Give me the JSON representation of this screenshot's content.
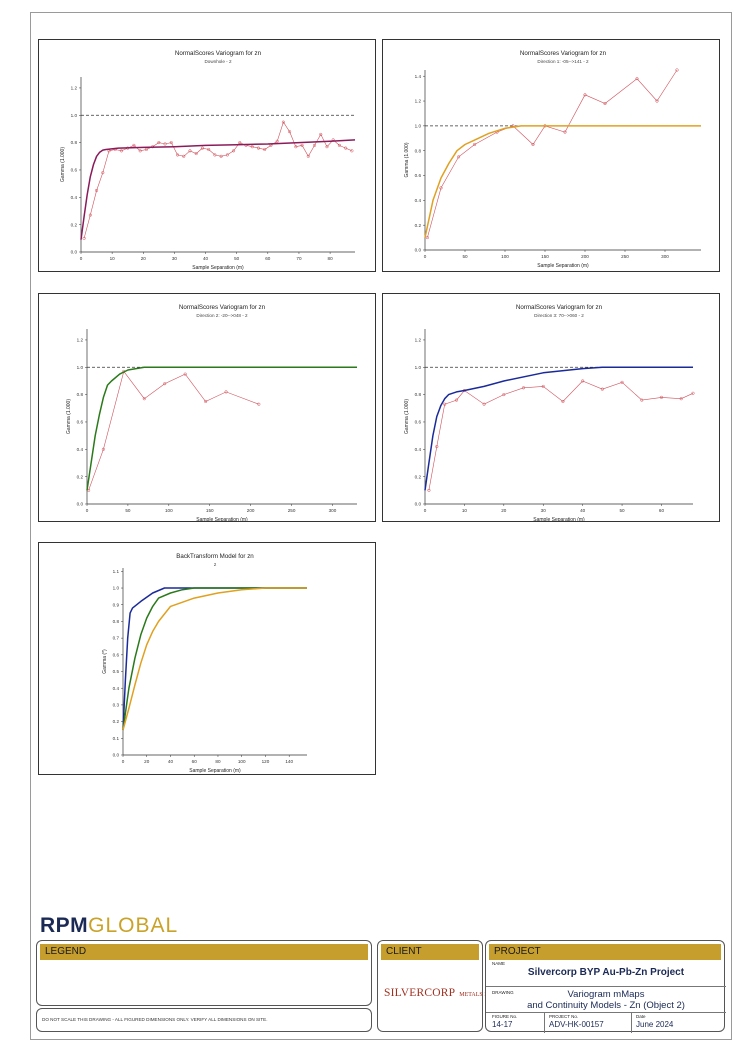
{
  "charts": [
    {
      "title": "NormalScores  Variogram for zn",
      "subtitle": "Downhole - 2",
      "xlabel": "Sample Separation (m)",
      "ylabel": "Gamma (1.000)",
      "xticks": [
        "0",
        "10",
        "20",
        "30",
        "40",
        "50",
        "60",
        "70",
        "80"
      ],
      "yticks": [
        "0.0",
        "0.2",
        "0.4",
        "0.6",
        "0.8",
        "1.0",
        "1.2"
      ]
    },
    {
      "title": "NormalScores  Variogram for zn",
      "subtitle": "Direction 1: -05-->141 - 2",
      "xlabel": "Sample Separation (m)",
      "ylabel": "Gamma (1.000)",
      "xticks": [
        "0",
        "50",
        "100",
        "150",
        "200",
        "250",
        "300"
      ],
      "yticks": [
        "0.0",
        "0.2",
        "0.4",
        "0.6",
        "0.8",
        "1.0",
        "1.2",
        "1.4"
      ]
    },
    {
      "title": "NormalScores  Variogram for zn",
      "subtitle": "Direction 2: -20-->048 - 2",
      "xlabel": "Sample Separation (m)",
      "ylabel": "Gamma (1.000)",
      "xticks": [
        "0",
        "50",
        "100",
        "150",
        "200",
        "250",
        "300"
      ],
      "yticks": [
        "0.0",
        "0.2",
        "0.4",
        "0.6",
        "0.8",
        "1.0",
        "1.2"
      ]
    },
    {
      "title": "NormalScores  Variogram for zn",
      "subtitle": "Direction 3: 70-->060 - 2",
      "xlabel": "Sample Separation (m)",
      "ylabel": "Gamma (1.000)",
      "xticks": [
        "0",
        "10",
        "20",
        "30",
        "40",
        "50",
        "60"
      ],
      "yticks": [
        "0.0",
        "0.2",
        "0.4",
        "0.6",
        "0.8",
        "1.0",
        "1.2"
      ]
    },
    {
      "title": "BackTransform Model for zn",
      "subtitle": "2",
      "xlabel": "Sample Separation (m)",
      "ylabel": "Gamma (*)",
      "xticks": [
        "0",
        "20",
        "40",
        "60",
        "80",
        "100",
        "120",
        "140"
      ],
      "yticks": [
        "0.0",
        "0.1",
        "0.2",
        "0.3",
        "0.4",
        "0.5",
        "0.6",
        "0.7",
        "0.8",
        "0.9",
        "1.0",
        "1.1"
      ]
    }
  ],
  "chart_data": [
    {
      "type": "line",
      "title": "NormalScores  Variogram for zn",
      "subtitle": "Downhole - 2",
      "xlabel": "Sample Separation (m)",
      "ylabel": "Gamma (1.000)",
      "xlim": [
        0,
        88
      ],
      "ylim": [
        0,
        1.28
      ],
      "sill": 1.0,
      "series": [
        {
          "kind": "experimental",
          "color": "#d0505a",
          "x": [
            1,
            3,
            5,
            7,
            9,
            11,
            13,
            15,
            17,
            19,
            21,
            23,
            25,
            27,
            29,
            31,
            33,
            35,
            37,
            39,
            41,
            43,
            45,
            47,
            49,
            51,
            53,
            55,
            57,
            59,
            61,
            63,
            65,
            67,
            69,
            71,
            73,
            75,
            77,
            79,
            81,
            83,
            85,
            87
          ],
          "y": [
            0.1,
            0.27,
            0.45,
            0.58,
            0.74,
            0.75,
            0.74,
            0.76,
            0.78,
            0.74,
            0.75,
            0.77,
            0.8,
            0.79,
            0.8,
            0.71,
            0.7,
            0.74,
            0.72,
            0.76,
            0.75,
            0.71,
            0.7,
            0.71,
            0.74,
            0.8,
            0.78,
            0.77,
            0.76,
            0.75,
            0.78,
            0.81,
            0.95,
            0.88,
            0.77,
            0.78,
            0.7,
            0.78,
            0.86,
            0.77,
            0.82,
            0.78,
            0.76,
            0.74
          ]
        },
        {
          "kind": "model",
          "color": "#8a1a5a",
          "x": [
            0,
            1,
            2,
            3,
            4,
            5,
            6,
            7,
            8,
            12,
            20,
            30,
            40,
            50,
            60,
            70,
            80,
            88
          ],
          "y": [
            0.09,
            0.26,
            0.42,
            0.55,
            0.64,
            0.7,
            0.73,
            0.745,
            0.75,
            0.76,
            0.765,
            0.77,
            0.78,
            0.785,
            0.79,
            0.8,
            0.81,
            0.82
          ]
        }
      ]
    },
    {
      "type": "line",
      "title": "NormalScores  Variogram for zn",
      "subtitle": "Direction 1: -05-->141 - 2",
      "xlabel": "Sample Separation (m)",
      "ylabel": "Gamma (1.000)",
      "xlim": [
        0,
        345
      ],
      "ylim": [
        0,
        1.45
      ],
      "sill": 1.0,
      "series": [
        {
          "kind": "experimental",
          "color": "#d0505a",
          "x": [
            3,
            20,
            42,
            62,
            90,
            110,
            135,
            150,
            175,
            200,
            225,
            265,
            290,
            315
          ],
          "y": [
            0.1,
            0.5,
            0.75,
            0.85,
            0.95,
            1.0,
            0.85,
            1.0,
            0.95,
            1.25,
            1.18,
            1.38,
            1.2,
            1.45
          ]
        },
        {
          "kind": "model",
          "color": "#e0a020",
          "x": [
            0,
            10,
            20,
            30,
            40,
            50,
            60,
            80,
            100,
            120,
            150,
            200,
            345
          ],
          "y": [
            0.1,
            0.4,
            0.58,
            0.7,
            0.8,
            0.85,
            0.88,
            0.94,
            0.98,
            1.0,
            1.0,
            1.0,
            1.0
          ]
        }
      ]
    },
    {
      "type": "line",
      "title": "NormalScores  Variogram for zn",
      "subtitle": "Direction 2: -20-->048 - 2",
      "xlabel": "Sample Separation (m)",
      "ylabel": "Gamma (1.000)",
      "xlim": [
        0,
        330
      ],
      "ylim": [
        0,
        1.28
      ],
      "sill": 1.0,
      "series": [
        {
          "kind": "experimental",
          "color": "#d0505a",
          "x": [
            2,
            20,
            45,
            70,
            95,
            120,
            145,
            170,
            210
          ],
          "y": [
            0.1,
            0.4,
            0.97,
            0.77,
            0.88,
            0.95,
            0.75,
            0.82,
            0.73
          ]
        },
        {
          "kind": "model",
          "color": "#2a7a1a",
          "x": [
            0,
            5,
            10,
            15,
            20,
            25,
            30,
            40,
            50,
            60,
            70,
            80,
            100,
            330
          ],
          "y": [
            0.1,
            0.3,
            0.5,
            0.65,
            0.78,
            0.87,
            0.9,
            0.95,
            0.98,
            0.99,
            1.0,
            1.0,
            1.0,
            1.0
          ]
        }
      ]
    },
    {
      "type": "line",
      "title": "NormalScores  Variogram for zn",
      "subtitle": "Direction 3: 70-->060 - 2",
      "xlabel": "Sample Separation (m)",
      "ylabel": "Gamma (1.000)",
      "xlim": [
        0,
        68
      ],
      "ylim": [
        0,
        1.28
      ],
      "sill": 1.0,
      "series": [
        {
          "kind": "experimental",
          "color": "#d0505a",
          "x": [
            1,
            3,
            5,
            8,
            10,
            15,
            20,
            25,
            30,
            35,
            40,
            45,
            50,
            55,
            60,
            65,
            68
          ],
          "y": [
            0.1,
            0.42,
            0.73,
            0.76,
            0.83,
            0.73,
            0.8,
            0.85,
            0.86,
            0.75,
            0.9,
            0.84,
            0.89,
            0.76,
            0.78,
            0.77,
            0.81
          ]
        },
        {
          "kind": "model",
          "color": "#1a2a9a",
          "x": [
            0,
            1,
            2,
            3,
            4,
            5,
            6,
            8,
            10,
            15,
            20,
            30,
            40,
            45,
            50,
            68
          ],
          "y": [
            0.1,
            0.3,
            0.5,
            0.64,
            0.72,
            0.77,
            0.8,
            0.82,
            0.83,
            0.86,
            0.9,
            0.96,
            0.99,
            1.0,
            1.0,
            1.0
          ]
        }
      ]
    },
    {
      "type": "line",
      "title": "BackTransform Model for zn",
      "subtitle": "2",
      "xlabel": "Sample Separation (m)",
      "ylabel": "Gamma (*)",
      "xlim": [
        0,
        155
      ],
      "ylim": [
        0,
        1.12
      ],
      "series": [
        {
          "kind": "model",
          "color": "#1a2a9a",
          "x": [
            0,
            2,
            4,
            6,
            8,
            15,
            25,
            35,
            45,
            55,
            155
          ],
          "y": [
            0.15,
            0.45,
            0.7,
            0.85,
            0.88,
            0.92,
            0.97,
            1.0,
            1.0,
            1.0,
            1.0
          ]
        },
        {
          "kind": "model",
          "color": "#2a7a1a",
          "x": [
            0,
            5,
            10,
            15,
            20,
            25,
            30,
            40,
            50,
            60,
            70,
            155
          ],
          "y": [
            0.15,
            0.4,
            0.58,
            0.72,
            0.82,
            0.89,
            0.94,
            0.97,
            0.99,
            1.0,
            1.0,
            1.0
          ]
        },
        {
          "kind": "model",
          "color": "#e0a020",
          "x": [
            0,
            5,
            10,
            15,
            20,
            25,
            30,
            40,
            60,
            80,
            100,
            120,
            130,
            155
          ],
          "y": [
            0.15,
            0.28,
            0.42,
            0.55,
            0.66,
            0.74,
            0.8,
            0.89,
            0.94,
            0.97,
            0.99,
            1.0,
            1.0,
            1.0
          ]
        }
      ]
    }
  ],
  "logo": {
    "part1": "RPM",
    "part2": "GLOBAL"
  },
  "legend": {
    "header": "LEGEND",
    "disclaimer": "DO NOT SCALE THIS DRAWING - ALL FIGURED DIMENSIONS ONLY. VERIFY ALL DIMENSIONS ON SITE."
  },
  "client": {
    "header": "CLIENT",
    "name": "SILVERCORP",
    "suffix": "METALS INC."
  },
  "project": {
    "header": "PROJECT",
    "name_label": "NAME",
    "name": "Silvercorp BYP Au-Pb-Zn Project",
    "drawing_label": "DRAWING",
    "drawing_line1": "Variogram mMaps",
    "drawing_line2": "and Continuity Models - Zn (Object 2)",
    "figure_label": "FIGURE No.",
    "figure": "14-17",
    "projno_label": "PROJECT No.",
    "projno": "ADV-HK-00157",
    "date_label": "Date",
    "date": "June 2024"
  },
  "colors": {
    "gold": "#c59e2e",
    "navy": "#1b2a55",
    "experimental": "#d0505a",
    "sill": "#333333"
  }
}
